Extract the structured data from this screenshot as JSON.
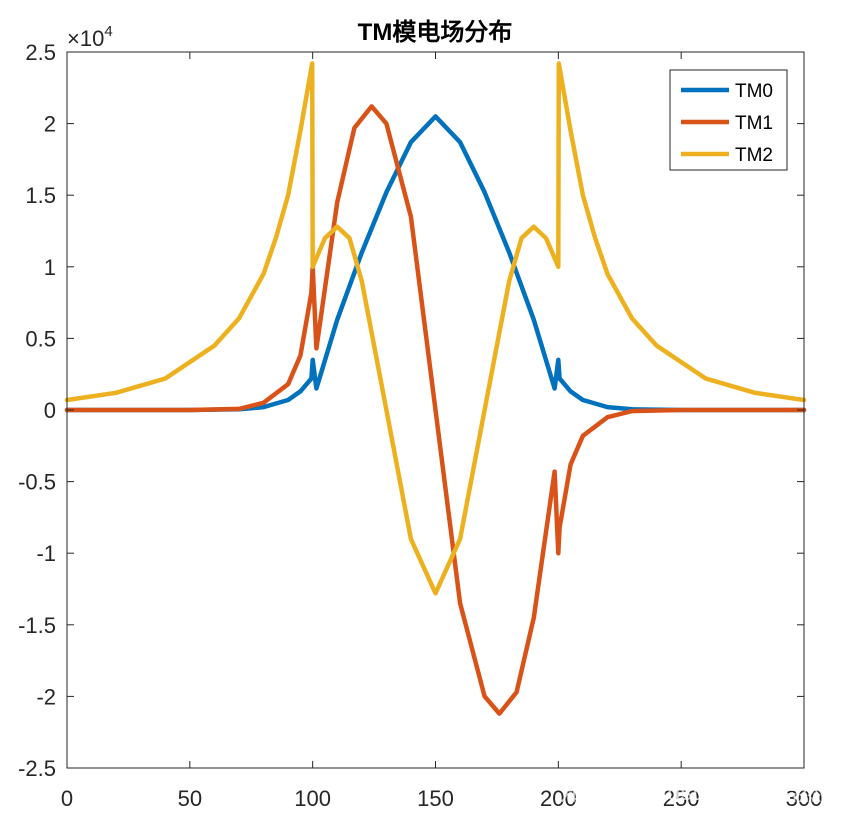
{
  "chart_data": {
    "type": "line",
    "title": "TM模电场分布",
    "xlabel": "",
    "ylabel": "",
    "xlim": [
      0,
      300
    ],
    "ylim": [
      -25000,
      25000
    ],
    "y_exponent_label": "×10",
    "y_exponent_power": "4",
    "x_ticks": [
      0,
      50,
      100,
      150,
      200,
      250,
      300
    ],
    "x_tick_labels": [
      "0",
      "50",
      "100",
      "150",
      "200",
      "250",
      "300"
    ],
    "y_ticks": [
      -25000,
      -20000,
      -15000,
      -10000,
      -5000,
      0,
      5000,
      10000,
      15000,
      20000,
      25000
    ],
    "y_tick_labels": [
      "-2.5",
      "-2",
      "-1.5",
      "-1",
      "-0.5",
      "0",
      "0.5",
      "1",
      "1.5",
      "2",
      "2.5"
    ],
    "grid": false,
    "legend_position": "top-right",
    "series": [
      {
        "name": "TM0",
        "color": "#0072BD",
        "x": [
          0,
          50,
          70,
          80,
          90,
          95,
          99.5,
          100,
          101.5,
          110,
          120,
          130,
          140,
          150,
          160,
          170,
          180,
          190,
          198.5,
          200,
          200.5,
          205,
          210,
          220,
          230,
          250,
          300
        ],
        "y": [
          0,
          0,
          50,
          200,
          700,
          1300,
          2200,
          3500,
          1500,
          6300,
          11000,
          15200,
          18700,
          20500,
          18700,
          15200,
          11000,
          6300,
          1500,
          3500,
          2200,
          1300,
          700,
          200,
          50,
          0,
          0
        ]
      },
      {
        "name": "TM1",
        "color": "#D95319",
        "x": [
          0,
          50,
          70,
          80,
          90,
          95,
          99.5,
          100,
          101.5,
          110,
          117,
          124,
          130,
          140,
          150,
          160,
          170,
          176,
          183,
          190,
          198.5,
          200,
          200.5,
          205,
          210,
          220,
          230,
          250,
          300
        ],
        "y": [
          0,
          0,
          80,
          500,
          1800,
          3800,
          8200,
          10000,
          4300,
          14500,
          19700,
          21200,
          20000,
          13500,
          0,
          -13500,
          -20000,
          -21200,
          -19700,
          -14500,
          -4300,
          -10000,
          -8200,
          -3800,
          -1800,
          -500,
          -80,
          0,
          0
        ]
      },
      {
        "name": "TM2",
        "color": "#EDB120",
        "x": [
          0,
          20,
          40,
          60,
          70,
          80,
          85,
          90,
          95,
          99.8,
          100,
          101,
          105,
          110,
          115,
          120,
          130,
          140,
          150,
          160,
          170,
          180,
          185,
          190,
          195,
          199,
          200,
          200.2,
          205,
          210,
          215,
          220,
          230,
          240,
          260,
          280,
          300
        ],
        "y": [
          700,
          1200,
          2200,
          4500,
          6400,
          9500,
          12000,
          15000,
          19500,
          24200,
          10000,
          10400,
          12000,
          12800,
          12000,
          9000,
          0,
          -9000,
          -12800,
          -9000,
          0,
          9000,
          12000,
          12800,
          12000,
          10400,
          10000,
          24200,
          19500,
          15000,
          12000,
          9500,
          6400,
          4500,
          2200,
          1200,
          700
        ]
      }
    ]
  },
  "watermark": "知乎 @Faust.Cao马浩然"
}
